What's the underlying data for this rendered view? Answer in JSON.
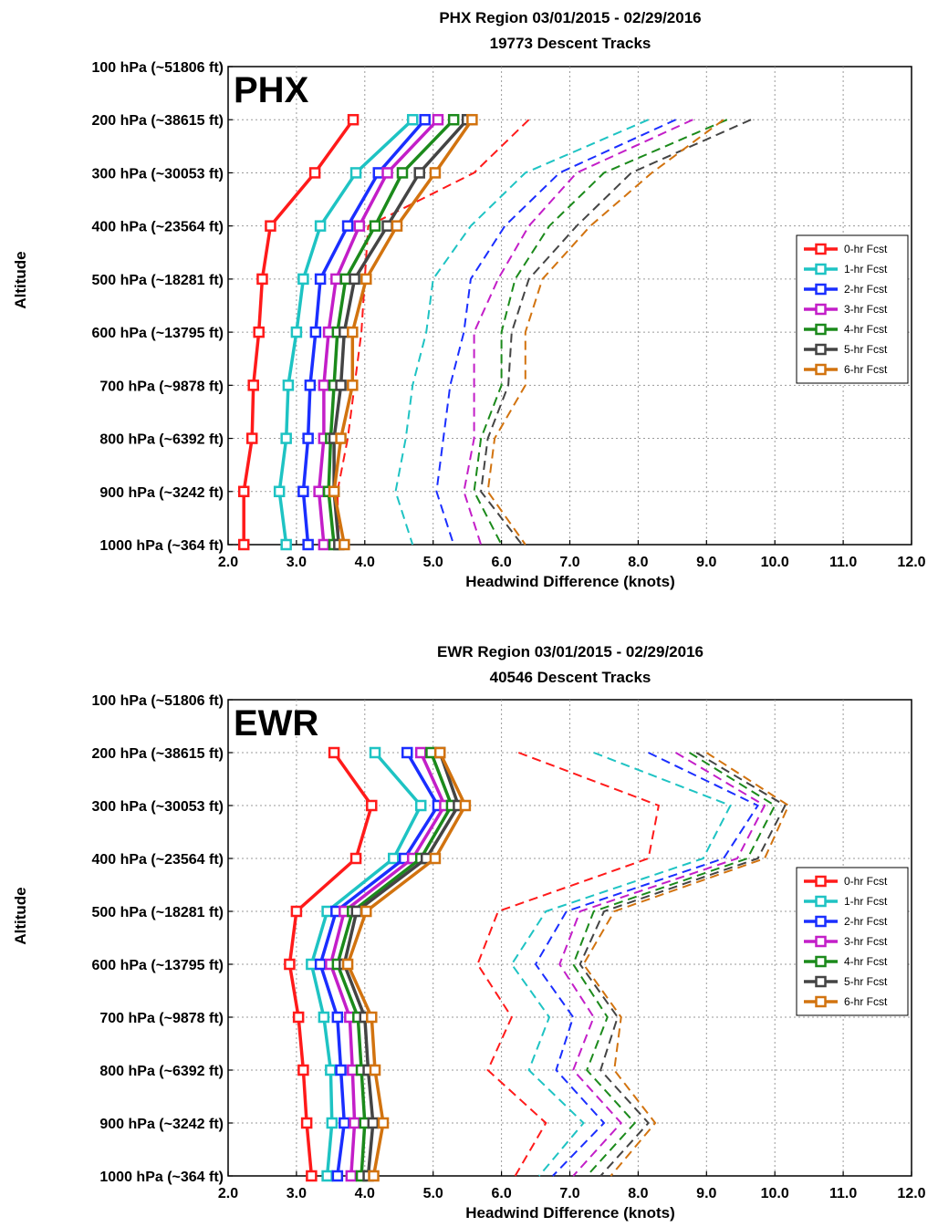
{
  "colors": {
    "0-hr Fcst": "#ff1a1a",
    "1-hr Fcst": "#1ec3c3",
    "2-hr Fcst": "#1a2eff",
    "3-hr Fcst": "#c31ec8",
    "4-hr Fcst": "#1b8a1b",
    "5-hr Fcst": "#444444",
    "6-hr Fcst": "#d2730f"
  },
  "chart_data": [
    {
      "type": "line",
      "region_label": "PHX",
      "title": "PHX Region  03/01/2015 - 02/29/2016",
      "subtitle": "19773 Descent Tracks",
      "xlabel": "Headwind Difference (knots)",
      "ylabel": "Altitude",
      "xlim": [
        2.0,
        12.0
      ],
      "x_ticks": [
        "2.0",
        "3.0",
        "4.0",
        "5.0",
        "6.0",
        "7.0",
        "8.0",
        "9.0",
        "10.0",
        "11.0",
        "12.0"
      ],
      "y_levels": [
        "100 hPa (~51806 ft)",
        "200 hPa (~38615 ft)",
        "300 hPa (~30053 ft)",
        "400 hPa (~23564 ft)",
        "500 hPa (~18281 ft)",
        "600 hPa (~13795 ft)",
        "700 hPa (~9878 ft)",
        "800 hPa (~6392 ft)",
        "900 hPa (~3242 ft)",
        "1000 hPa (~364 ft)"
      ],
      "grid": true,
      "legend_position": "right",
      "series": [
        {
          "name": "0-hr Fcst",
          "solid": [
            3.83,
            3.27,
            2.62,
            2.5,
            2.45,
            2.37,
            2.35,
            2.23,
            2.23
          ],
          "dashed": [
            6.4,
            5.6,
            4.05,
            4.0,
            3.95,
            3.85,
            3.75,
            3.6,
            3.62
          ]
        },
        {
          "name": "1-hr Fcst",
          "solid": [
            4.7,
            3.87,
            3.35,
            3.1,
            3.0,
            2.88,
            2.85,
            2.75,
            2.85
          ],
          "dashed": [
            8.15,
            6.35,
            5.55,
            5.0,
            4.9,
            4.7,
            4.6,
            4.45,
            4.7
          ]
        },
        {
          "name": "2-hr Fcst",
          "solid": [
            4.88,
            4.2,
            3.75,
            3.35,
            3.28,
            3.2,
            3.17,
            3.1,
            3.17
          ],
          "dashed": [
            8.55,
            6.85,
            6.05,
            5.55,
            5.45,
            5.25,
            5.15,
            5.05,
            5.3
          ]
        },
        {
          "name": "3-hr Fcst",
          "solid": [
            5.07,
            4.33,
            3.92,
            3.58,
            3.47,
            3.4,
            3.4,
            3.33,
            3.4
          ],
          "dashed": [
            8.8,
            7.1,
            6.4,
            5.95,
            5.6,
            5.6,
            5.6,
            5.45,
            5.7
          ]
        },
        {
          "name": "4-hr Fcst",
          "solid": [
            5.3,
            4.55,
            4.15,
            3.72,
            3.6,
            3.55,
            3.5,
            3.47,
            3.55
          ],
          "dashed": [
            9.3,
            7.5,
            6.7,
            6.2,
            6.0,
            6.0,
            5.7,
            5.6,
            6.0
          ]
        },
        {
          "name": "5-hr Fcst",
          "solid": [
            5.5,
            4.8,
            4.33,
            3.85,
            3.7,
            3.65,
            3.55,
            3.55,
            3.62
          ],
          "dashed": [
            9.65,
            7.9,
            7.1,
            6.4,
            6.15,
            6.1,
            5.8,
            5.7,
            6.3
          ]
        },
        {
          "name": "6-hr Fcst",
          "solid": [
            5.57,
            5.03,
            4.47,
            4.02,
            3.82,
            3.82,
            3.65,
            3.55,
            3.7
          ],
          "dashed": [
            9.25,
            8.2,
            7.3,
            6.6,
            6.35,
            6.35,
            5.9,
            5.8,
            6.35
          ]
        }
      ]
    },
    {
      "type": "line",
      "region_label": "EWR",
      "title": "EWR Region  03/01/2015 - 02/29/2016",
      "subtitle": "40546 Descent Tracks",
      "xlabel": "Headwind Difference (knots)",
      "ylabel": "Altitude",
      "xlim": [
        2.0,
        12.0
      ],
      "x_ticks": [
        "2.0",
        "3.0",
        "4.0",
        "5.0",
        "6.0",
        "7.0",
        "8.0",
        "9.0",
        "10.0",
        "11.0",
        "12.0"
      ],
      "y_levels": [
        "100 hPa (~51806 ft)",
        "200 hPa (~38615 ft)",
        "300 hPa (~30053 ft)",
        "400 hPa (~23564 ft)",
        "500 hPa (~18281 ft)",
        "600 hPa (~13795 ft)",
        "700 hPa (~9878 ft)",
        "800 hPa (~6392 ft)",
        "900 hPa (~3242 ft)",
        "1000 hPa (~364 ft)"
      ],
      "grid": true,
      "legend_position": "right",
      "series": [
        {
          "name": "0-hr Fcst",
          "solid": [
            3.55,
            4.1,
            3.87,
            3.0,
            2.9,
            3.03,
            3.1,
            3.15,
            3.22
          ],
          "dashed": [
            6.25,
            8.3,
            8.15,
            5.95,
            5.65,
            6.15,
            5.8,
            6.65,
            6.2
          ]
        },
        {
          "name": "1-hr Fcst",
          "solid": [
            4.15,
            4.82,
            4.42,
            3.45,
            3.22,
            3.4,
            3.5,
            3.52,
            3.45
          ],
          "dashed": [
            7.35,
            9.35,
            8.95,
            6.65,
            6.15,
            6.7,
            6.4,
            7.2,
            6.55
          ]
        },
        {
          "name": "2-hr Fcst",
          "solid": [
            4.62,
            5.07,
            4.58,
            3.58,
            3.35,
            3.6,
            3.65,
            3.7,
            3.6
          ],
          "dashed": [
            8.15,
            9.75,
            9.25,
            6.95,
            6.5,
            7.05,
            6.8,
            7.5,
            6.75
          ]
        },
        {
          "name": "3-hr Fcst",
          "solid": [
            4.82,
            5.17,
            4.7,
            3.7,
            3.5,
            3.78,
            3.82,
            3.85,
            3.8
          ],
          "dashed": [
            8.55,
            9.85,
            9.45,
            7.15,
            6.85,
            7.35,
            7.05,
            7.75,
            7.05
          ]
        },
        {
          "name": "4-hr Fcst",
          "solid": [
            4.97,
            5.27,
            4.82,
            3.82,
            3.6,
            3.9,
            3.95,
            4.0,
            3.95
          ],
          "dashed": [
            8.75,
            10.0,
            9.6,
            7.35,
            7.05,
            7.55,
            7.25,
            7.95,
            7.25
          ]
        },
        {
          "name": "5-hr Fcst",
          "solid": [
            5.1,
            5.37,
            4.9,
            3.88,
            3.7,
            4.0,
            4.05,
            4.12,
            4.05
          ],
          "dashed": [
            8.85,
            10.15,
            9.75,
            7.5,
            7.15,
            7.7,
            7.45,
            8.15,
            7.45
          ]
        },
        {
          "name": "6-hr Fcst",
          "solid": [
            5.1,
            5.47,
            5.03,
            4.02,
            3.75,
            4.1,
            4.15,
            4.27,
            4.13
          ],
          "dashed": [
            9.0,
            10.2,
            9.85,
            7.65,
            7.2,
            7.75,
            7.65,
            8.25,
            7.6
          ]
        }
      ]
    }
  ]
}
